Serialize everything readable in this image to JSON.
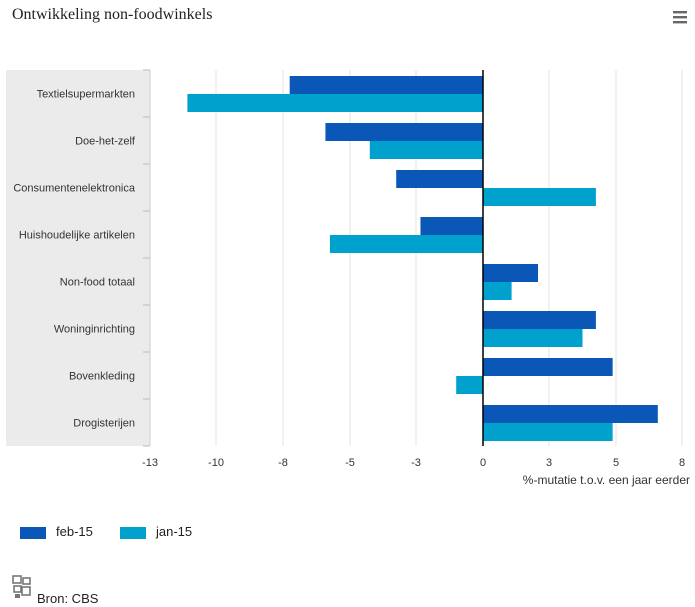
{
  "header": {
    "title": "Ontwikkeling non-foodwinkels",
    "menu_icon": "hamburger-menu-icon"
  },
  "chart_data": {
    "type": "bar",
    "orientation": "horizontal",
    "categories": [
      "Textielsupermarkten",
      "Doe-het-zelf",
      "Consumentenelektronica",
      "Huishoudelijke artikelen",
      "Non-food totaal",
      "Woninginrichting",
      "Bovenkleding",
      "Drogisterijen"
    ],
    "series": [
      {
        "name": "feb-15",
        "color": "#0a57b7",
        "values": [
          -7.7,
          -6.1,
          -3.6,
          -2.8,
          2.5,
          4.4,
          4.9,
          6.9
        ]
      },
      {
        "name": "jan-15",
        "color": "#00a1cd",
        "values": [
          -11.3,
          -4.4,
          4.4,
          -5.9,
          1.3,
          4.0,
          -1.2,
          4.9
        ]
      }
    ],
    "xticks": [
      -13,
      -10,
      -8,
      -5,
      -3,
      0,
      3,
      5,
      8
    ],
    "xlim": [
      -15,
      9
    ],
    "xlabel": "%-mutatie t.o.v. een jaar eerder",
    "grid": true,
    "legend_position": "bottom-left"
  },
  "source": {
    "text": "Bron: CBS",
    "icon": "cbs-logo-icon"
  }
}
